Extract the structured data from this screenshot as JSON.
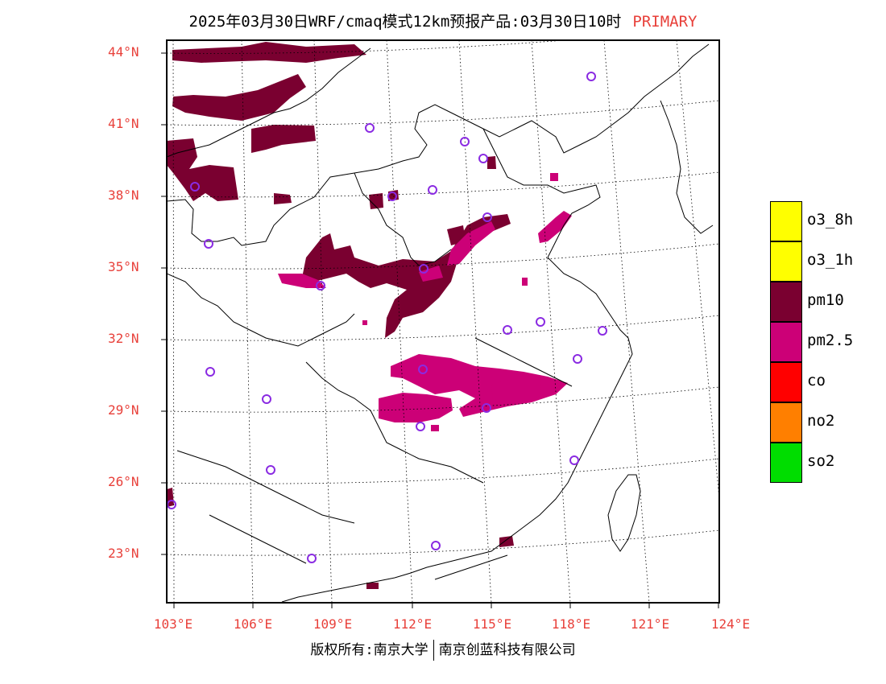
{
  "title": "2025年03月30日WRF/cmaq模式12km预报产品:03月30日10时",
  "title_tag": "PRIMARY",
  "lat_labels": [
    "44°N",
    "41°N",
    "38°N",
    "35°N",
    "32°N",
    "29°N",
    "26°N",
    "23°N"
  ],
  "lon_labels": [
    "103°E",
    "106°E",
    "109°E",
    "112°E",
    "115°E",
    "118°E",
    "121°E",
    "124°E"
  ],
  "legend": [
    {
      "label": "o3_8h",
      "color": "#ffff00"
    },
    {
      "label": "o3_1h",
      "color": "#ffff00"
    },
    {
      "label": "pm10",
      "color": "#7a0030"
    },
    {
      "label": "pm2.5",
      "color": "#cc0077"
    },
    {
      "label": "co",
      "color": "#ff0000"
    },
    {
      "label": "no2",
      "color": "#ff7f00"
    },
    {
      "label": "so2",
      "color": "#00dd00"
    }
  ],
  "footer": {
    "left": "版权所有:南京大学",
    "right": "南京创蓝科技有限公司"
  },
  "colors": {
    "label_red": "#e8403a",
    "pm10": "#7a0030",
    "pm25": "#cc0077",
    "station": "#8a2be2"
  }
}
